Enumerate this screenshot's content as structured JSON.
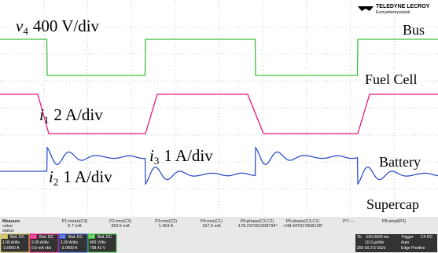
{
  "logo": {
    "brand": "TELEDYNE LECROY",
    "tagline": "Everywhereyoulook"
  },
  "annotations": {
    "v4": "v",
    "v4_sub": "4",
    "v4_scale": "400 V/div",
    "i1": "i",
    "i1_sub": "1",
    "i1_scale": "2 A/div",
    "i3": "i",
    "i3_sub": "3",
    "i3_scale": "1 A/div",
    "i2": "i",
    "i2_sub": "2",
    "i2_scale": "1 A/div"
  },
  "trace_labels": [
    "Bus",
    "Fuel Cell",
    "Battery",
    "Supercap"
  ],
  "measure": {
    "headers": [
      "Measure",
      "value",
      "status"
    ],
    "params": [
      {
        "name": "P1:mean(C3)",
        "value": "6.7 mA"
      },
      {
        "name": "P2:rms(C3)",
        "value": "393.5 mA"
      },
      {
        "name": "P3:rms(C2)",
        "value": "1.463 A"
      },
      {
        "name": "P4:rms(C1)",
        "value": "167.0 mA"
      },
      {
        "name": "P5:phase(C3,C2)",
        "value": "-178.237051508794°"
      },
      {
        "name": "P6:phase(C3,C1)",
        "value": "-148.947917808128°"
      },
      {
        "name": "P7:---",
        "value": ""
      },
      {
        "name": "P8:ampl(P2)",
        "value": ""
      }
    ]
  },
  "channels": [
    {
      "id": "C1",
      "mode": "BwL DC",
      "scale": "1.00 A/div",
      "offset": "-3.0000 A"
    },
    {
      "id": "C2",
      "mode": "BwL DC",
      "scale": "2.00 A/div",
      "offset": "0.0 mA ofst"
    },
    {
      "id": "C3",
      "mode": "BwL DC",
      "scale": "1.00 A/div",
      "offset": "-3.0600 A"
    },
    {
      "id": "C4",
      "mode": "BwL DC",
      "scale": "400 V/div",
      "offset": "798.42 V"
    }
  ],
  "timebase": {
    "label": "Tb",
    "delay": "-100.0000 ms",
    "rate": "10.0 µs/div",
    "samples": "250 kS 2.5 GS/s"
  },
  "trigger": {
    "label": "Trigger",
    "source": "C4 DC",
    "mode": "Auto",
    "type": "Edge Positive"
  }
}
